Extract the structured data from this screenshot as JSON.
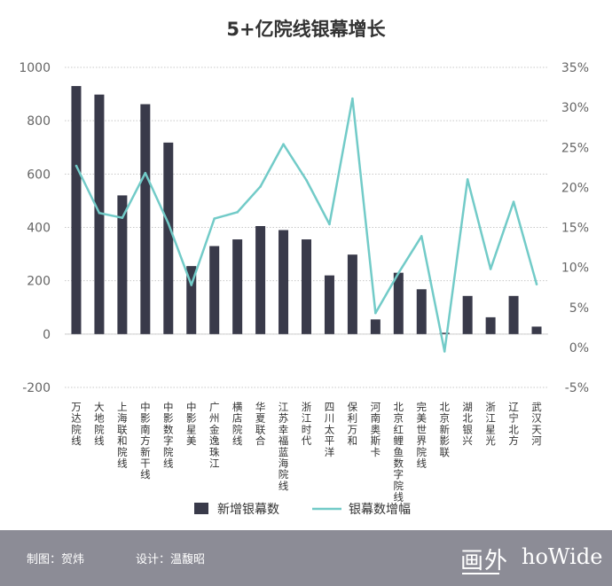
{
  "chart_data": {
    "type": "bar+line",
    "title": "5+亿院线银幕增长",
    "categories": [
      "万达院线",
      "大地院线",
      "上海联和院线",
      "中影南方新干线",
      "中影数字院线",
      "中影星美",
      "广州金逸珠江",
      "横店院线",
      "华夏联合",
      "江苏幸福蓝海院线",
      "浙江时代",
      "四川太平洋",
      "保利万和",
      "河南奥斯卡",
      "北京红鲤鱼数字院线",
      "完美世界院线",
      "北京新影联",
      "湖北银兴",
      "浙江星光",
      "辽宁北方",
      "武汉天河"
    ],
    "series": [
      {
        "name": "新增银幕数",
        "type": "bar",
        "axis": "left",
        "color": "#393a4a",
        "values": [
          930,
          898,
          520,
          862,
          718,
          255,
          330,
          355,
          405,
          390,
          355,
          220,
          298,
          55,
          230,
          168,
          5,
          143,
          63,
          143,
          28
        ]
      },
      {
        "name": "银幕数增幅",
        "type": "line",
        "axis": "right",
        "color": "#72cbc8",
        "values": [
          22.7,
          16.8,
          16.2,
          21.8,
          15.5,
          7.8,
          16.1,
          16.9,
          20.1,
          25.4,
          20.9,
          15.4,
          31.1,
          4.3,
          9.3,
          13.9,
          -0.5,
          21.0,
          9.8,
          18.2,
          7.9
        ]
      }
    ],
    "y_left": {
      "min": -200,
      "max": 1000,
      "ticks": [
        -200,
        0,
        200,
        400,
        600,
        800,
        1000
      ]
    },
    "y_right": {
      "min": -5,
      "max": 35,
      "ticks": [
        "-5%",
        "0%",
        "5%",
        "10%",
        "15%",
        "20%",
        "25%",
        "30%",
        "35%"
      ]
    },
    "grid": "horizontal-dotted",
    "legend_position": "bottom"
  },
  "footer": {
    "left_credit": "制图：贺炜",
    "right_credit": "设计：温馥昭",
    "logo_cn": "画外",
    "logo_en": "hoWide"
  }
}
